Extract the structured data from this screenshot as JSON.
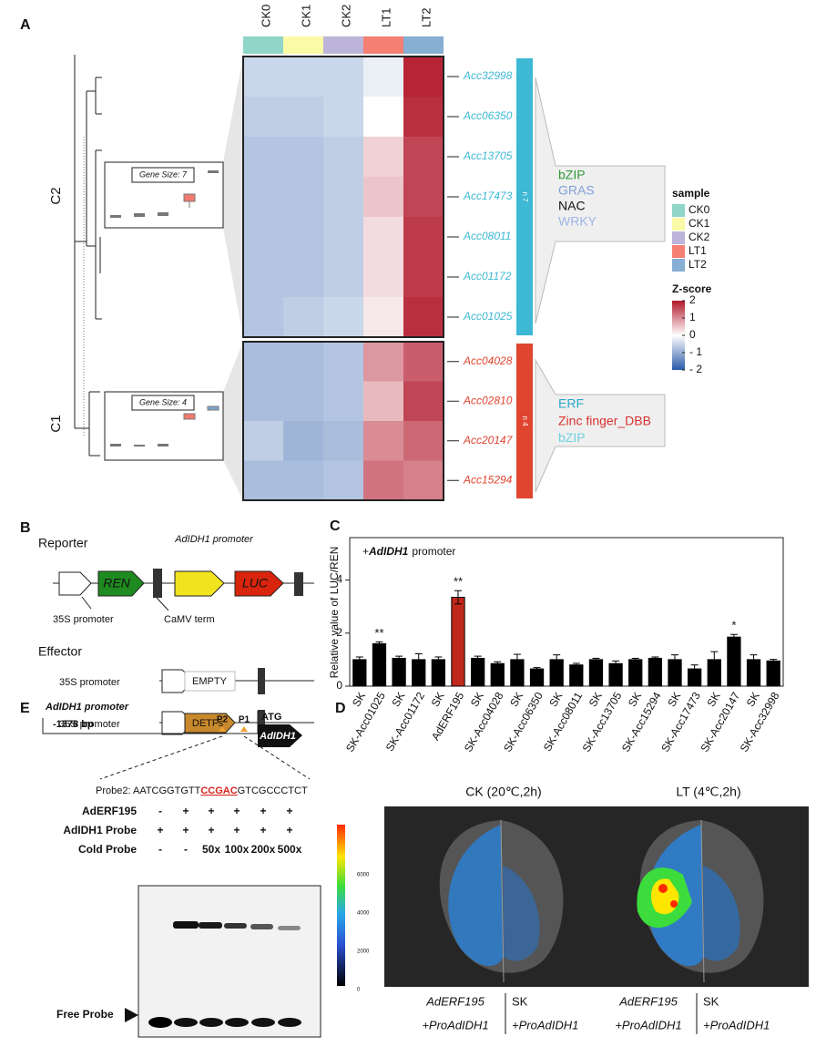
{
  "chart_data": [
    {
      "type": "heatmap",
      "panel": "A",
      "samples": [
        "CK0",
        "CK1",
        "CK2",
        "LT1",
        "LT2"
      ],
      "sample_colors": [
        "#8fd5c8",
        "#fbfaa6",
        "#bcb4d9",
        "#f57f73",
        "#87aed3"
      ],
      "sample_legend_title": "sample",
      "clusters": [
        {
          "name": "C2",
          "gene_size_label": "Gene Size: 7",
          "count_label": "n 7",
          "color": "#3db8d5",
          "genes": [
            "Acc32998",
            "Acc06350",
            "Acc13705",
            "Acc17473",
            "Acc08011",
            "Acc01172",
            "Acc01025"
          ],
          "values": [
            [
              -0.5,
              -0.5,
              -0.5,
              -0.2,
              1.9
            ],
            [
              -0.6,
              -0.6,
              -0.5,
              0.0,
              1.8
            ],
            [
              -0.7,
              -0.7,
              -0.6,
              0.4,
              1.6
            ],
            [
              -0.7,
              -0.7,
              -0.6,
              0.5,
              1.6
            ],
            [
              -0.7,
              -0.7,
              -0.6,
              0.3,
              1.7
            ],
            [
              -0.7,
              -0.7,
              -0.6,
              0.3,
              1.7
            ],
            [
              -0.7,
              -0.6,
              -0.5,
              0.2,
              1.8
            ]
          ],
          "tfs": [
            {
              "name": "bZIP",
              "color": "#2e9a3a"
            },
            {
              "name": "GRAS",
              "color": "#7f9fd8"
            },
            {
              "name": "NAC",
              "color": "#111111"
            },
            {
              "name": "WRKY",
              "color": "#9fb5e6"
            }
          ]
        },
        {
          "name": "C1",
          "gene_size_label": "Gene Size: 4",
          "count_label": "n 4",
          "color": "#e0452f",
          "genes": [
            "Acc04028",
            "Acc02810",
            "Acc20147",
            "Acc15294"
          ],
          "values": [
            [
              -0.8,
              -0.8,
              -0.7,
              0.9,
              1.4
            ],
            [
              -0.8,
              -0.8,
              -0.7,
              0.6,
              1.6
            ],
            [
              -0.6,
              -0.9,
              -0.8,
              1.0,
              1.3
            ],
            [
              -0.8,
              -0.8,
              -0.7,
              1.2,
              1.1
            ]
          ],
          "tfs": [
            {
              "name": "ERF",
              "color": "#29a9c9"
            },
            {
              "name": "Zinc finger_DBB",
              "color": "#d8322e"
            },
            {
              "name": "bZIP",
              "color": "#6fd0e0"
            }
          ]
        }
      ],
      "colorbar_title": "Z-score",
      "zlim": [
        -2,
        2
      ],
      "zticks": [
        2,
        1,
        0,
        {
          "value": -1,
          "label": "- 1"
        },
        {
          "value": -2,
          "label": "- 2"
        }
      ]
    },
    {
      "type": "bar",
      "panel": "C",
      "ylabel": "Relative value of LUC/REN",
      "annotation_parts": [
        "+",
        "AdIDH1",
        "promoter"
      ],
      "categories": [
        "SK",
        "SK-Acc01025",
        "SK",
        "SK-Acc01172",
        "SK",
        "AdERF195",
        "SK",
        "SK-Acc04028",
        "SK",
        "SK-Acc06350",
        "SK",
        "SK-Acc08011",
        "SK",
        "SK-Acc13705",
        "SK",
        "SK-Acc15294",
        "SK",
        "SK-Acc17473",
        "SK",
        "SK-Acc20147",
        "SK",
        "SK-Acc32998"
      ],
      "values": [
        1.0,
        1.6,
        1.05,
        1.0,
        1.0,
        3.35,
        1.05,
        0.85,
        1.0,
        0.65,
        1.0,
        0.8,
        1.0,
        0.85,
        1.0,
        1.05,
        1.0,
        0.65,
        1.0,
        1.85,
        1.0,
        0.95
      ],
      "errors": [
        0.1,
        0.07,
        0.08,
        0.22,
        0.1,
        0.25,
        0.08,
        0.07,
        0.2,
        0.05,
        0.18,
        0.06,
        0.05,
        0.1,
        0.05,
        0.05,
        0.18,
        0.15,
        0.3,
        0.1,
        0.18,
        0.06
      ],
      "colors": [
        "#000000",
        "#000000",
        "#000000",
        "#000000",
        "#000000",
        "#c0281c",
        "#000000",
        "#000000",
        "#000000",
        "#000000",
        "#000000",
        "#000000",
        "#000000",
        "#000000",
        "#000000",
        "#000000",
        "#000000",
        "#000000",
        "#000000",
        "#000000",
        "#000000",
        "#000000"
      ],
      "significance": [
        null,
        "**",
        null,
        null,
        null,
        "**",
        null,
        null,
        null,
        null,
        null,
        null,
        null,
        null,
        null,
        null,
        null,
        null,
        null,
        "*",
        null,
        null
      ],
      "ylim": [
        0,
        5.6
      ],
      "yticks": [
        0,
        2,
        4
      ]
    }
  ],
  "panel_b": {
    "label": "B",
    "reporter": "Reporter",
    "promoter": "AdIDH1 promoter",
    "ren": "REN",
    "luc": "LUC",
    "s35": "35S promoter",
    "term": "CaMV term",
    "effector": "Effector",
    "empty": "EMPTY",
    "detfs": "DETFs"
  },
  "panel_e": {
    "label": "E",
    "promoter": "AdIDH1 promoter",
    "length": "-1378 bp",
    "p2": "P2",
    "p1": "P1",
    "atg": "ATG",
    "gene": "AdIDH1",
    "probe": [
      "Probe2: AATCGGTGTT",
      "CCGAC",
      "GTCGCCCTCT"
    ],
    "rows": [
      {
        "name": "AdERF195",
        "cells": [
          "-",
          "+",
          "+",
          "+",
          "+",
          "+"
        ]
      },
      {
        "name": "AdIDH1 Probe",
        "cells": [
          "+",
          "+",
          "+",
          "+",
          "+",
          "+"
        ]
      },
      {
        "name": "Cold Probe",
        "cells": [
          "-",
          "-",
          "50x",
          "100x",
          "200x",
          "500x"
        ]
      }
    ],
    "free_probe": "Free Probe"
  },
  "panel_d": {
    "label": "D",
    "ck": "CK (20℃,2h)",
    "lt": "LT (4℃,2h)",
    "colorbar_ticks": [
      "6000",
      "4000",
      "2000",
      "0"
    ],
    "captions": [
      [
        "AdERF195",
        "+ProAdIDH1"
      ],
      [
        "SK",
        "+ProAdIDH1"
      ],
      [
        "AdERF195",
        "+ProAdIDH1"
      ],
      [
        "SK",
        "+ProAdIDH1"
      ]
    ]
  }
}
